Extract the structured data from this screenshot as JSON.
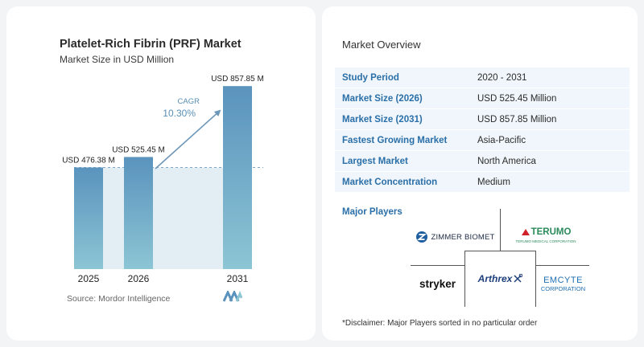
{
  "chart_data": {
    "type": "bar",
    "title": "Platelet-Rich Fibrin (PRF) Market",
    "subtitle": "Market Size in USD Million",
    "categories": [
      "2025",
      "2026",
      "2031"
    ],
    "values": [
      476.38,
      525.45,
      857.85
    ],
    "value_labels": [
      "USD 476.38 M",
      "USD 525.45 M",
      "USD 857.85 M"
    ],
    "cagr_label": "CAGR",
    "cagr_value": "10.30%",
    "ylim": [
      0,
      900
    ],
    "grid": false,
    "colors": {
      "bar_top": "#5a93bd",
      "bar_bottom": "#8cc5d4",
      "band": "#e3edf4",
      "arrow": "#6d97b9",
      "cagr": "#5a8fb5"
    }
  },
  "source": "Source: Mordor Intelligence",
  "overview": {
    "title": "Market Overview",
    "rows": [
      {
        "key": "Study Period",
        "value": "2020 - 2031"
      },
      {
        "key": "Market Size (2026)",
        "value": "USD 525.45 Million"
      },
      {
        "key": "Market Size (2031)",
        "value": "USD 857.85 Million"
      },
      {
        "key": "Fastest Growing Market",
        "value": "Asia-Pacific"
      },
      {
        "key": "Largest Market",
        "value": "North America"
      },
      {
        "key": "Market Concentration",
        "value": "Medium"
      }
    ]
  },
  "players": {
    "title": "Major Players",
    "zimmer": "ZIMMER BIOMET",
    "terumo": "TERUMO",
    "terumo_sub": "TERUMO MEDICAL CORPORATION",
    "stryker": "stryker",
    "arthrex": "Arthrex",
    "emcyte": "EMCYTE",
    "emcyte_sub": "CORPORATION"
  },
  "disclaimer": "*Disclaimer: Major Players sorted in no particular order"
}
